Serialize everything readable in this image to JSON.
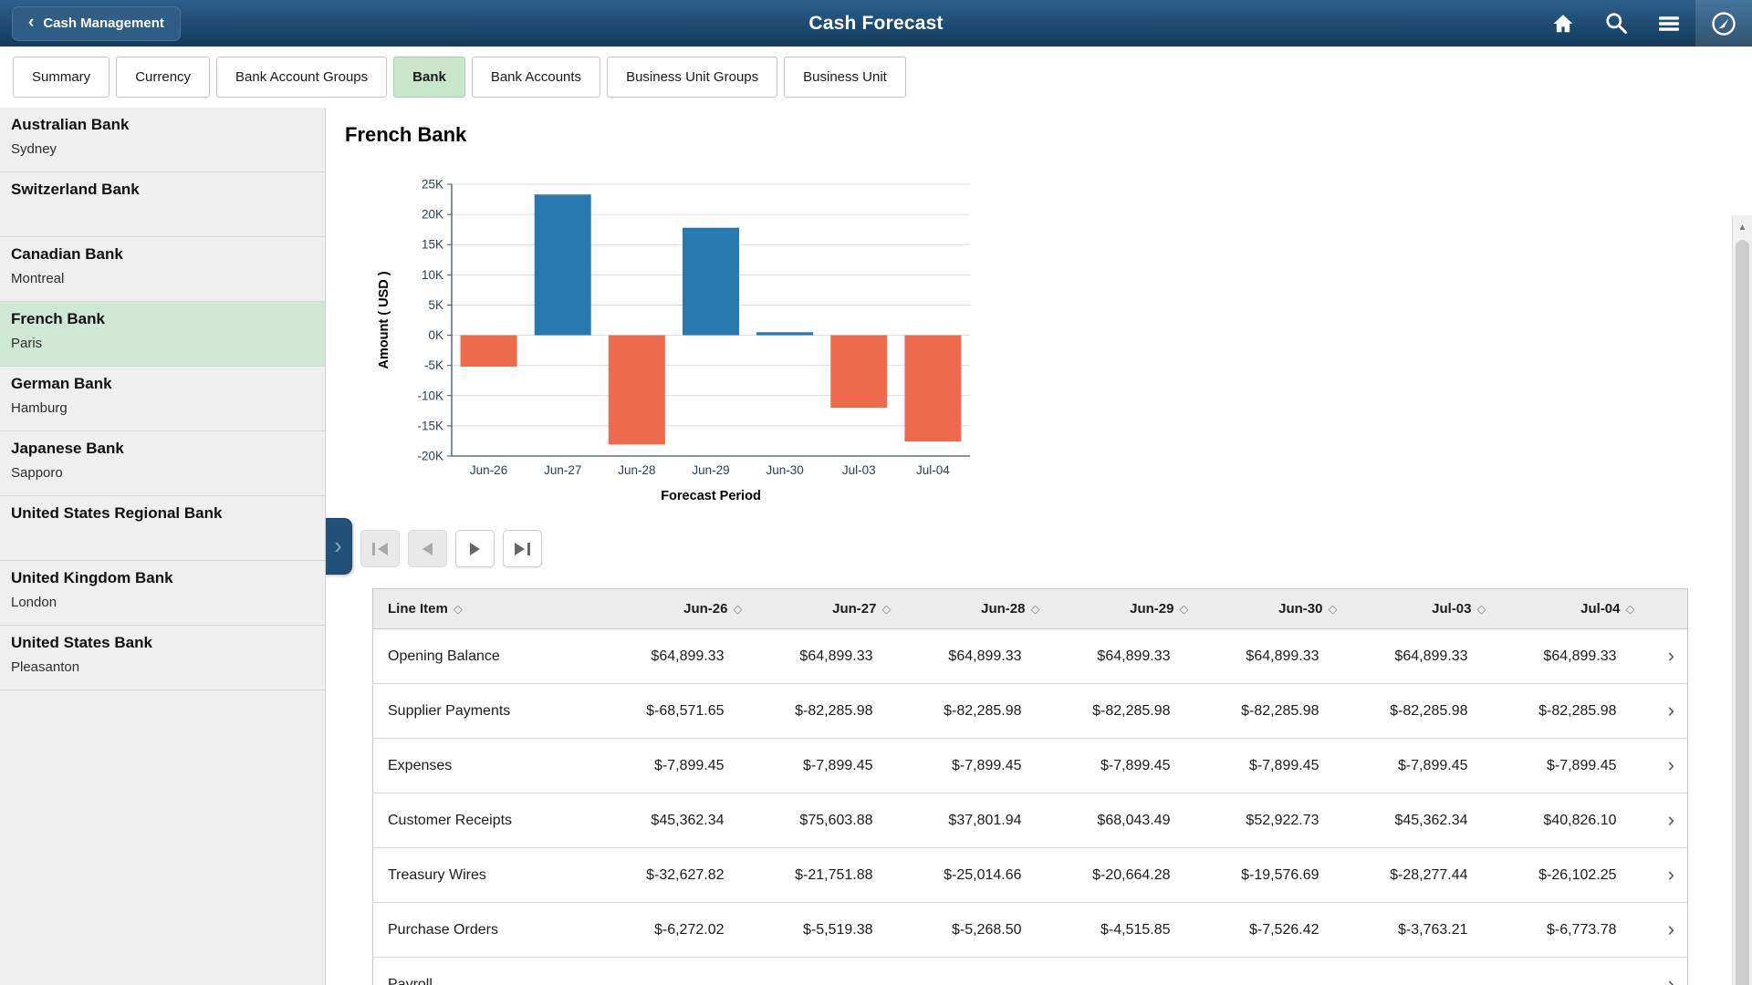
{
  "header": {
    "back_label": "Cash Management",
    "title": "Cash Forecast",
    "icons": [
      "home-icon",
      "search-icon",
      "menu-icon",
      "compass-navbar-icon"
    ]
  },
  "tabs": [
    {
      "label": "Summary",
      "selected": false
    },
    {
      "label": "Currency",
      "selected": false
    },
    {
      "label": "Bank Account Groups",
      "selected": false
    },
    {
      "label": "Bank",
      "selected": true
    },
    {
      "label": "Bank Accounts",
      "selected": false
    },
    {
      "label": "Business Unit Groups",
      "selected": false
    },
    {
      "label": "Business Unit",
      "selected": false
    }
  ],
  "sidebar": {
    "banks": [
      {
        "name": "Australian Bank",
        "city": "Sydney",
        "selected": false
      },
      {
        "name": "Switzerland Bank",
        "city": "",
        "selected": false
      },
      {
        "name": "Canadian Bank",
        "city": "Montreal",
        "selected": false
      },
      {
        "name": "French Bank",
        "city": "Paris",
        "selected": true
      },
      {
        "name": "German Bank",
        "city": "Hamburg",
        "selected": false
      },
      {
        "name": "Japanese Bank",
        "city": "Sapporo",
        "selected": false
      },
      {
        "name": "United States Regional Bank",
        "city": "",
        "selected": false
      },
      {
        "name": "United Kingdom Bank",
        "city": "London",
        "selected": false
      },
      {
        "name": "United States Bank",
        "city": "Pleasanton",
        "selected": false
      }
    ]
  },
  "main": {
    "heading": "French Bank"
  },
  "icons": {
    "expander": "›",
    "row_chevron": "›",
    "sort": "◇",
    "scroll_up": "▲",
    "back_chevron": "‹"
  },
  "chart_data": {
    "type": "bar",
    "title": "French Bank",
    "categories": [
      "Jun-26",
      "Jun-27",
      "Jun-28",
      "Jun-29",
      "Jun-30",
      "Jul-03",
      "Jul-04"
    ],
    "values": [
      -5200,
      23300,
      -18100,
      17800,
      500,
      -12000,
      -17600
    ],
    "xlabel": "Forecast Period",
    "ylabel": "Amount ( USD )",
    "ylim": [
      -20000,
      25000
    ],
    "ytick_step": 5000,
    "tick_format": "thousands-K",
    "positive_color": "#2979b1",
    "negative_color": "#ed6a4d",
    "grid": true,
    "legend": "none"
  },
  "table": {
    "columns": [
      "Line Item",
      "Jun-26",
      "Jun-27",
      "Jun-28",
      "Jun-29",
      "Jun-30",
      "Jul-03",
      "Jul-04"
    ],
    "rows": [
      {
        "label": "Opening Balance",
        "values": [
          "$64,899.33",
          "$64,899.33",
          "$64,899.33",
          "$64,899.33",
          "$64,899.33",
          "$64,899.33",
          "$64,899.33"
        ]
      },
      {
        "label": "Supplier Payments",
        "values": [
          "$-68,571.65",
          "$-82,285.98",
          "$-82,285.98",
          "$-82,285.98",
          "$-82,285.98",
          "$-82,285.98",
          "$-82,285.98"
        ]
      },
      {
        "label": "Expenses",
        "values": [
          "$-7,899.45",
          "$-7,899.45",
          "$-7,899.45",
          "$-7,899.45",
          "$-7,899.45",
          "$-7,899.45",
          "$-7,899.45"
        ]
      },
      {
        "label": "Customer Receipts",
        "values": [
          "$45,362.34",
          "$75,603.88",
          "$37,801.94",
          "$68,043.49",
          "$52,922.73",
          "$45,362.34",
          "$40,826.10"
        ]
      },
      {
        "label": "Treasury Wires",
        "values": [
          "$-32,627.82",
          "$-21,751.88",
          "$-25,014.66",
          "$-20,664.28",
          "$-19,576.69",
          "$-28,277.44",
          "$-26,102.25"
        ]
      },
      {
        "label": "Purchase Orders",
        "values": [
          "$-6,272.02",
          "$-5,519.38",
          "$-5,268.50",
          "$-4,515.85",
          "$-7,526.42",
          "$-3,763.21",
          "$-6,773.78"
        ]
      },
      {
        "label": "Payroll",
        "values": [
          "",
          "",
          "",
          "",
          "",
          "",
          ""
        ]
      }
    ]
  },
  "colors": {
    "header_top": "#2c608c",
    "header_bottom": "#143a5a",
    "selected_green": "#c9e6cb",
    "sidebar_selected_green": "#cfe8d4",
    "bar_positive": "#2979b1",
    "bar_negative": "#ed6a4d"
  }
}
